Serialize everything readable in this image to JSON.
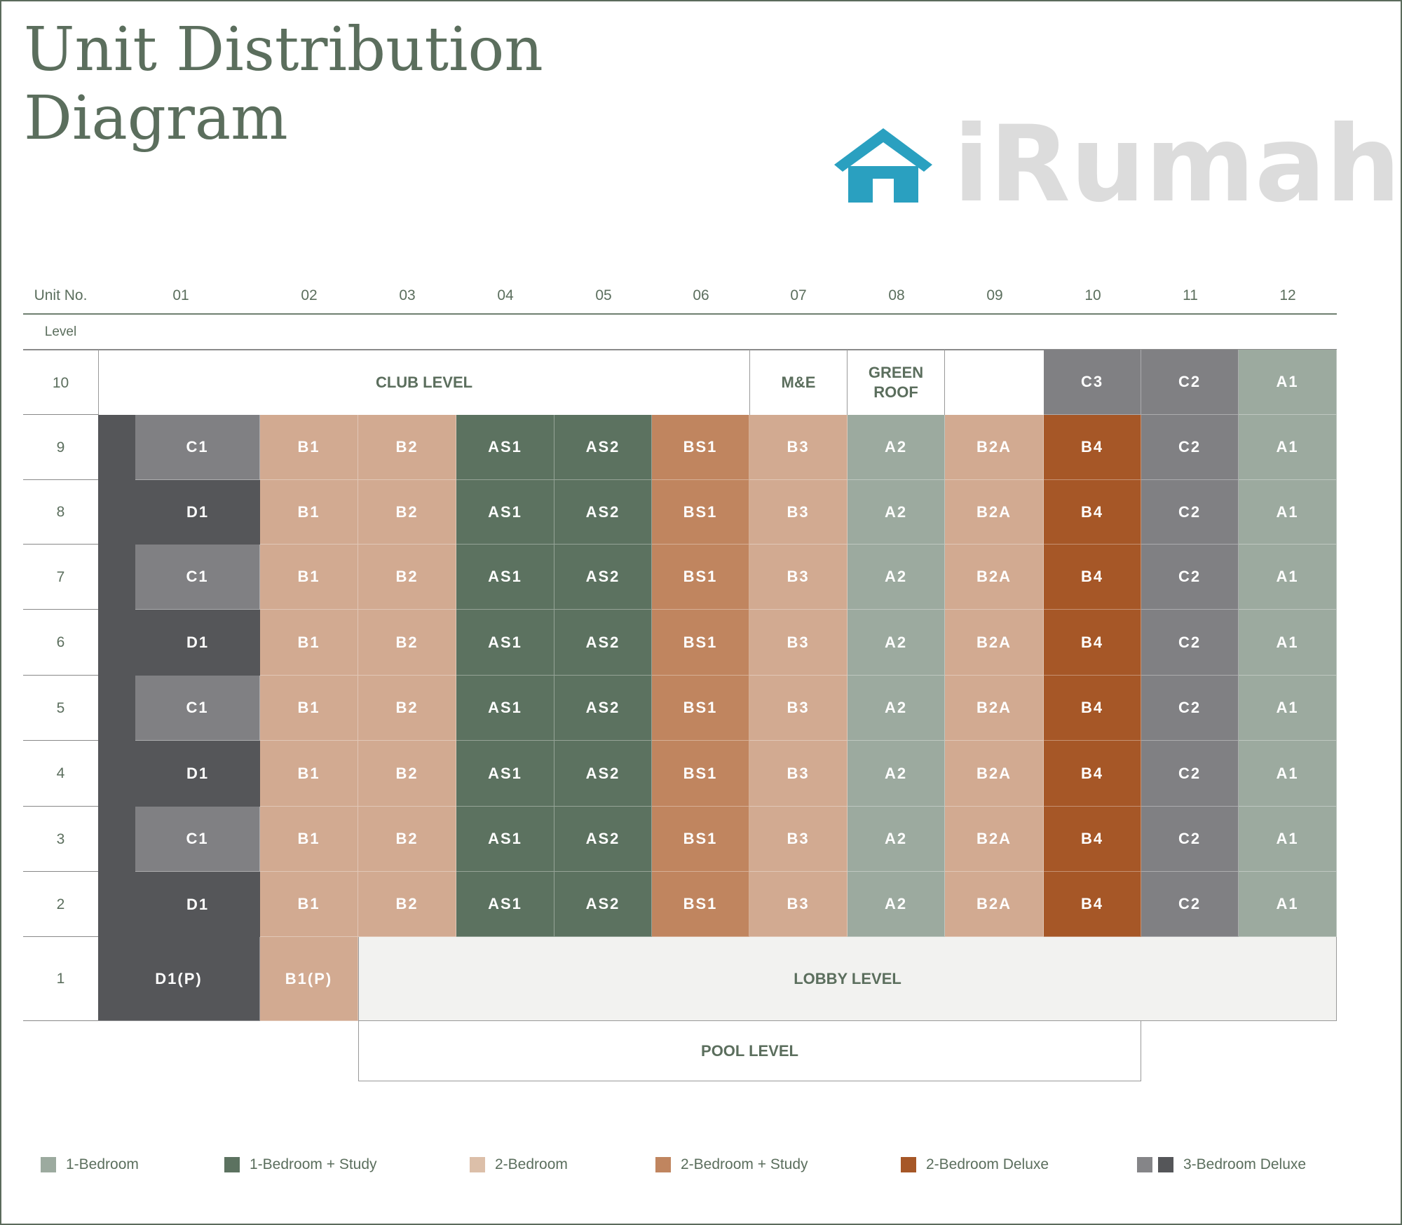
{
  "title_line1": "Unit Distribution",
  "title_line2": "Diagram",
  "header": {
    "unit_no_label": "Unit No.",
    "level_label": "Level",
    "units": [
      "01",
      "02",
      "03",
      "04",
      "05",
      "06",
      "07",
      "08",
      "09",
      "10",
      "11",
      "12"
    ]
  },
  "colors": {
    "A": "#9caa9f",
    "AS": "#5c7260",
    "B": "#d2aa91",
    "BS": "#c0855f",
    "B4": "#a65727",
    "C": "#808083",
    "D": "#555659",
    "text": "#5b6e5d",
    "lobby": "#f2f2f0"
  },
  "level_10": {
    "level": "10",
    "club": "CLUB LEVEL",
    "me": "M&E",
    "green_roof_1": "GREEN",
    "green_roof_2": "ROOF",
    "units": [
      "C3",
      "C2",
      "A1"
    ]
  },
  "rows": [
    {
      "level": "9",
      "units": [
        "C1",
        "B1",
        "B2",
        "AS1",
        "AS2",
        "BS1",
        "B3",
        "A2",
        "B2A",
        "B4",
        "C2",
        "A1"
      ]
    },
    {
      "level": "8",
      "units": [
        "D1",
        "B1",
        "B2",
        "AS1",
        "AS2",
        "BS1",
        "B3",
        "A2",
        "B2A",
        "B4",
        "C2",
        "A1"
      ]
    },
    {
      "level": "7",
      "units": [
        "C1",
        "B1",
        "B2",
        "AS1",
        "AS2",
        "BS1",
        "B3",
        "A2",
        "B2A",
        "B4",
        "C2",
        "A1"
      ]
    },
    {
      "level": "6",
      "units": [
        "D1",
        "B1",
        "B2",
        "AS1",
        "AS2",
        "BS1",
        "B3",
        "A2",
        "B2A",
        "B4",
        "C2",
        "A1"
      ]
    },
    {
      "level": "5",
      "units": [
        "C1",
        "B1",
        "B2",
        "AS1",
        "AS2",
        "BS1",
        "B3",
        "A2",
        "B2A",
        "B4",
        "C2",
        "A1"
      ]
    },
    {
      "level": "4",
      "units": [
        "D1",
        "B1",
        "B2",
        "AS1",
        "AS2",
        "BS1",
        "B3",
        "A2",
        "B2A",
        "B4",
        "C2",
        "A1"
      ]
    },
    {
      "level": "3",
      "units": [
        "C1",
        "B1",
        "B2",
        "AS1",
        "AS2",
        "BS1",
        "B3",
        "A2",
        "B2A",
        "B4",
        "C2",
        "A1"
      ]
    },
    {
      "level": "2",
      "units": [
        "D1",
        "B1",
        "B2",
        "AS1",
        "AS2",
        "BS1",
        "B3",
        "A2",
        "B2A",
        "B4",
        "C2",
        "A1"
      ]
    }
  ],
  "level_1": {
    "level": "1",
    "units": [
      "D1(P)",
      "B1(P)"
    ],
    "lobby": "LOBBY LEVEL"
  },
  "pool": "POOL LEVEL",
  "legend": [
    {
      "label": "1-Bedroom",
      "colors": [
        "#9caa9f"
      ]
    },
    {
      "label": "1-Bedroom + Study",
      "colors": [
        "#5c7260"
      ]
    },
    {
      "label": "2-Bedroom",
      "colors": [
        "#dcbfa9"
      ]
    },
    {
      "label": "2-Bedroom + Study",
      "colors": [
        "#c0855f"
      ]
    },
    {
      "label": "2-Bedroom Deluxe",
      "colors": [
        "#a65727"
      ]
    },
    {
      "label": "3-Bedroom Deluxe",
      "colors": [
        "#858588",
        "#555659"
      ]
    }
  ],
  "watermark": "iRumah"
}
